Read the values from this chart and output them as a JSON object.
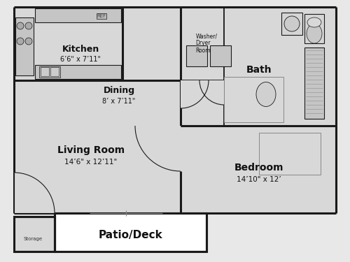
{
  "bg_color": "#e8e8e8",
  "wall_color": "#1a1a1a",
  "room_fill": "#d8d8d8",
  "white_fill": "#ffffff",
  "wall_lw": 2.2,
  "thin_lw": 0.8,
  "rooms": {
    "kitchen": {
      "label": "Kitchen",
      "sublabel": "6’6\" x 7’11\""
    },
    "dining": {
      "label": "Dining",
      "sublabel": "8’ x 7’11\""
    },
    "living": {
      "label": "Living Room",
      "sublabel": "14’6\" x 12’11\""
    },
    "bath": {
      "label": "Bath",
      "sublabel": ""
    },
    "washer": {
      "label": "Washer/\nDryer\nRoom",
      "sublabel": ""
    },
    "bedroom": {
      "label": "Bedroom",
      "sublabel": "14’10\" x 12’"
    },
    "patio": {
      "label": "Patio/Deck",
      "sublabel": ""
    },
    "storage": {
      "label": "Storage",
      "sublabel": ""
    }
  }
}
